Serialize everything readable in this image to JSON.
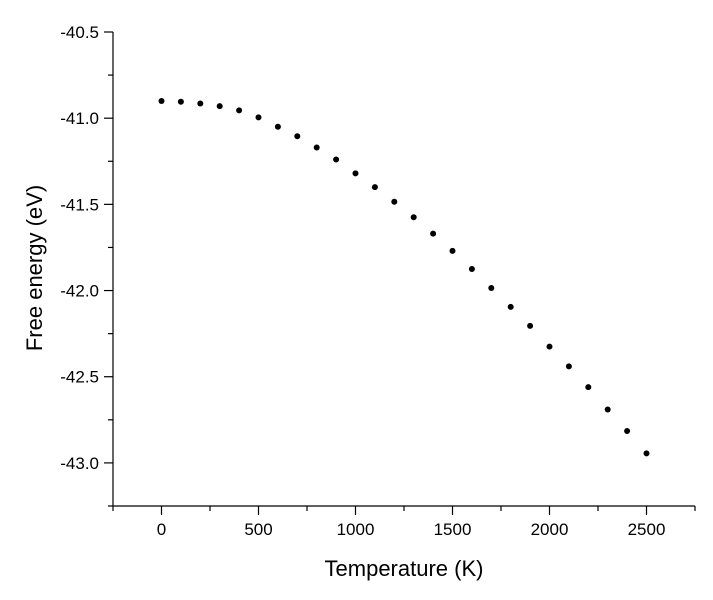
{
  "chart_data": {
    "type": "scatter",
    "title": "",
    "xlabel": "Temperature (K)",
    "ylabel": "Free energy (eV)",
    "xlim": [
      -250,
      2750
    ],
    "ylim": [
      -43.25,
      -40.5
    ],
    "x_ticks": [
      0,
      500,
      1000,
      1500,
      2000,
      2500
    ],
    "x_tick_labels": [
      "0",
      "500",
      "1000",
      "1500",
      "2000",
      "2500"
    ],
    "y_ticks": [
      -40.5,
      -41.0,
      -41.5,
      -42.0,
      -42.5,
      -43.0
    ],
    "y_tick_labels": [
      "-40.5",
      "-41.0",
      "-41.5",
      "-42.0",
      "-42.5",
      "-43.0"
    ],
    "grid": false,
    "legend": "none",
    "marker_color": "#000000",
    "series": [
      {
        "x": [
          0,
          100,
          200,
          300,
          400,
          500,
          600,
          700,
          800,
          900,
          1000,
          1100,
          1200,
          1300,
          1400,
          1500,
          1600,
          1700,
          1800,
          1900,
          2000,
          2100,
          2200,
          2300,
          2400,
          2500
        ],
        "y": [
          -40.9,
          -40.905,
          -40.915,
          -40.93,
          -40.955,
          -40.995,
          -41.05,
          -41.105,
          -41.17,
          -41.24,
          -41.32,
          -41.4,
          -41.485,
          -41.575,
          -41.67,
          -41.77,
          -41.875,
          -41.985,
          -42.095,
          -42.205,
          -42.325,
          -42.44,
          -42.56,
          -42.69,
          -42.815,
          -42.945
        ]
      }
    ]
  }
}
